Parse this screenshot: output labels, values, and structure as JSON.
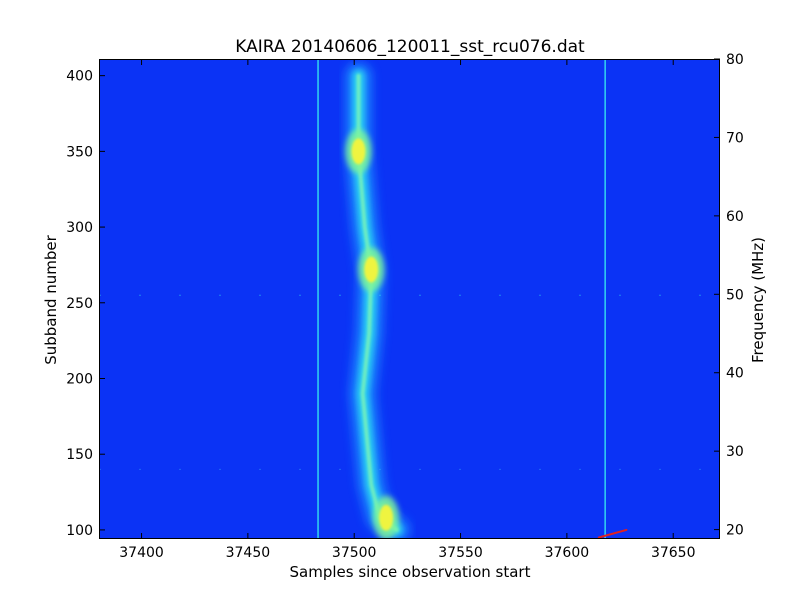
{
  "chart_data": {
    "type": "heatmap",
    "title": "KAIRA  20140606_120011_sst_rcu076.dat",
    "xlabel": "Samples since observation start",
    "ylabel": "Subband number",
    "y2label": "Frequency (MHz)",
    "xlim": [
      37380,
      37672
    ],
    "ylim": [
      94,
      411
    ],
    "y2lim": [
      18.8,
      80
    ],
    "x_ticks": [
      37400,
      37450,
      37500,
      37550,
      37600,
      37650
    ],
    "y_ticks": [
      100,
      150,
      200,
      250,
      300,
      350,
      400
    ],
    "y2_ticks": [
      20,
      30,
      40,
      50,
      60,
      70,
      80
    ],
    "x_tick_labels": [
      "37400",
      "37450",
      "37500",
      "37550",
      "37600",
      "37650"
    ],
    "y_tick_labels": [
      "100",
      "150",
      "200",
      "250",
      "300",
      "350",
      "400"
    ],
    "y2_tick_labels": [
      "20",
      "30",
      "40",
      "50",
      "60",
      "70",
      "80"
    ],
    "colormap": "jet",
    "background_color": "#0b33f5",
    "grid": false,
    "legend": "none",
    "features": [
      {
        "kind": "burst_track",
        "points": [
          [
            37502,
            400
          ],
          [
            37502,
            350
          ],
          [
            37505,
            300
          ],
          [
            37508,
            270
          ],
          [
            37507,
            230
          ],
          [
            37504,
            190
          ],
          [
            37506,
            160
          ],
          [
            37508,
            130
          ],
          [
            37512,
            108
          ],
          [
            37520,
            100
          ]
        ]
      },
      {
        "kind": "hotspot",
        "x": 37502,
        "y": 350,
        "intensity": "yellow"
      },
      {
        "kind": "hotspot",
        "x": 37508,
        "y": 272,
        "intensity": "yellow"
      },
      {
        "kind": "hotspot",
        "x": 37515,
        "y": 108,
        "intensity": "yellow"
      },
      {
        "kind": "vertical_line",
        "x": 37483,
        "intensity": "cyan"
      },
      {
        "kind": "vertical_line",
        "x": 37618,
        "intensity": "cyan"
      },
      {
        "kind": "interference_row",
        "y": 255,
        "intensity": "cyan"
      },
      {
        "kind": "interference_row",
        "y": 140,
        "intensity": "light"
      },
      {
        "kind": "sweep",
        "points": [
          [
            37615,
            95
          ],
          [
            37628,
            100
          ]
        ],
        "intensity": "red"
      }
    ]
  }
}
